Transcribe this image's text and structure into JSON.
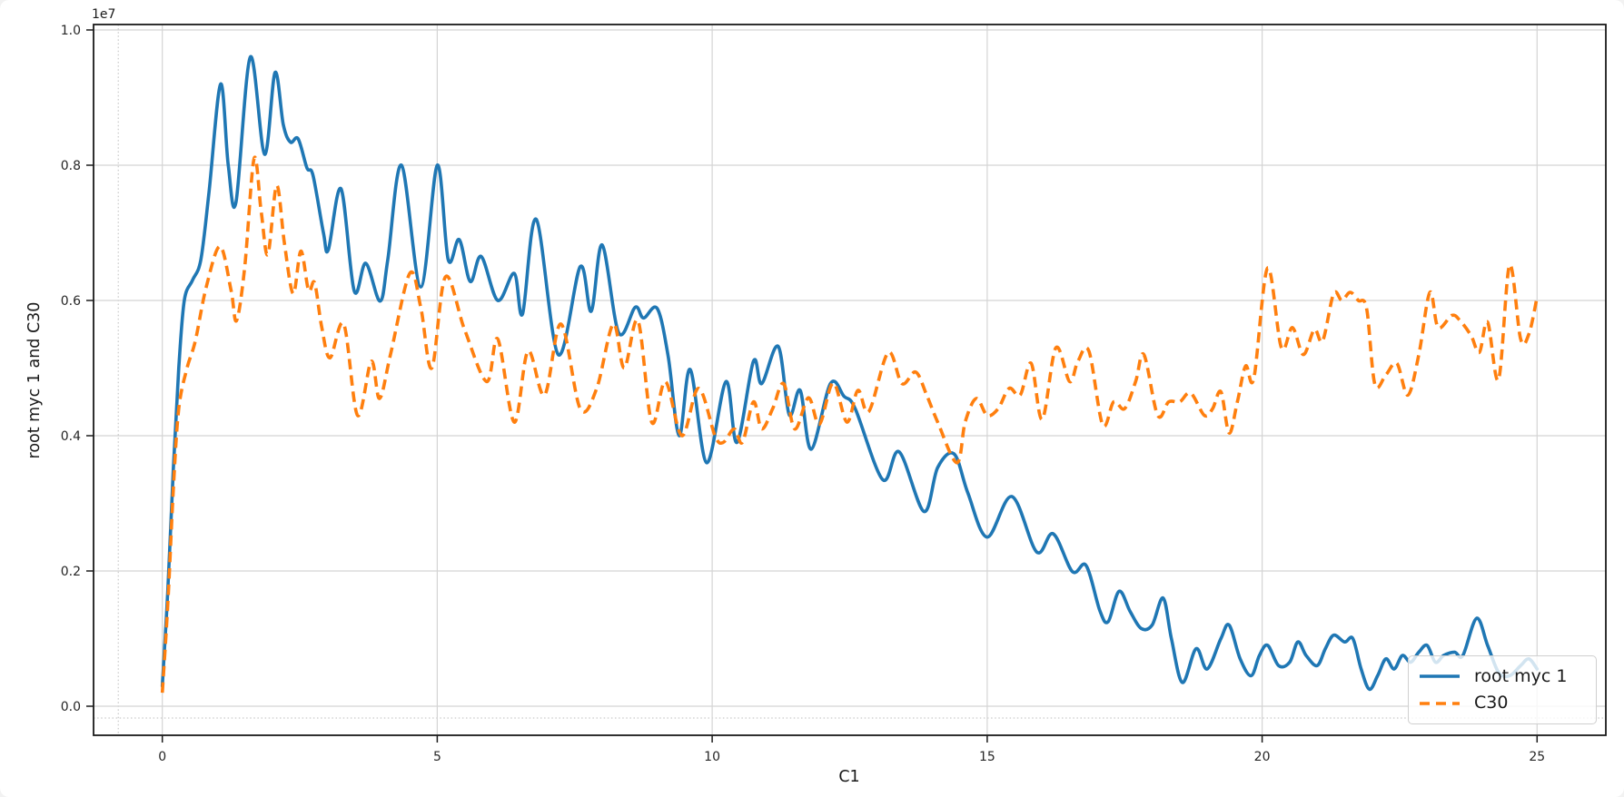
{
  "figure": {
    "background": "#ffffff"
  },
  "colors": {
    "grid_major": "#d4d4d4",
    "grid_minor": "#bdbdbd",
    "spine": "#1a1a1a",
    "tick_text": "#262626",
    "series_blue": "#1f77b4",
    "series_orange": "#ff7f0e"
  },
  "chart_data": {
    "type": "line",
    "title": "",
    "xlabel": "C1",
    "ylabel": "root myc 1 and C30",
    "y_offset_text": "1e7",
    "y_unit_multiplier": 10000000,
    "xlim": [
      -1.25,
      26.25
    ],
    "ylim": [
      -0.043,
      1.008
    ],
    "xticks": [
      0,
      5,
      10,
      15,
      20,
      25
    ],
    "xtick_labels": [
      "0",
      "5",
      "10",
      "15",
      "20",
      "25"
    ],
    "yticks": [
      0.0,
      0.2,
      0.4,
      0.6,
      0.8,
      1.0
    ],
    "ytick_labels": [
      "0.0",
      "0.2",
      "0.4",
      "0.6",
      "0.8",
      "1.0"
    ],
    "grid": true,
    "minor_gridlines": {
      "x": [
        -0.8
      ],
      "y": [
        -0.0175
      ]
    },
    "legend": {
      "position": "lower right",
      "entries": [
        "root myc 1",
        "C30"
      ]
    },
    "series": [
      {
        "name": "root myc 1",
        "color": "#1f77b4",
        "line_style": "solid",
        "x": [
          0,
          0.1,
          0.2,
          0.3,
          0.4,
          0.55,
          0.7,
          0.85,
          1.06,
          1.2,
          1.34,
          1.6,
          1.86,
          2.05,
          2.2,
          2.33,
          2.47,
          2.63,
          2.74,
          2.93,
          3.02,
          3.25,
          3.49,
          3.7,
          3.96,
          4.1,
          4.35,
          4.7,
          5.0,
          5.2,
          5.4,
          5.6,
          5.8,
          6.1,
          6.4,
          6.55,
          6.8,
          7.2,
          7.6,
          7.8,
          8.0,
          8.3,
          8.6,
          8.75,
          9.0,
          9.2,
          9.4,
          9.6,
          9.9,
          10.25,
          10.45,
          10.75,
          10.9,
          11.2,
          11.4,
          11.6,
          11.8,
          12.15,
          12.4,
          12.6,
          13.1,
          13.4,
          13.85,
          14.1,
          14.4,
          14.65,
          15.0,
          15.45,
          15.9,
          16.2,
          16.55,
          16.8,
          17.05,
          17.2,
          17.4,
          17.6,
          17.8,
          18.0,
          18.2,
          18.35,
          18.55,
          18.8,
          19.0,
          19.25,
          19.4,
          19.6,
          19.8,
          19.95,
          20.1,
          20.3,
          20.5,
          20.65,
          20.8,
          21.0,
          21.15,
          21.3,
          21.5,
          21.65,
          21.8,
          21.95,
          22.1,
          22.25,
          22.4,
          22.55,
          22.7,
          22.85,
          23.0,
          23.15,
          23.3,
          23.5,
          23.65,
          23.9,
          24.1,
          24.3,
          24.5,
          24.7,
          24.85,
          25.0
        ],
        "y": [
          0.03,
          0.17,
          0.35,
          0.5,
          0.6,
          0.63,
          0.66,
          0.76,
          0.92,
          0.8,
          0.745,
          0.96,
          0.816,
          0.937,
          0.86,
          0.834,
          0.839,
          0.796,
          0.785,
          0.7,
          0.675,
          0.765,
          0.614,
          0.655,
          0.599,
          0.66,
          0.8,
          0.62,
          0.8,
          0.66,
          0.69,
          0.628,
          0.665,
          0.6,
          0.64,
          0.58,
          0.72,
          0.52,
          0.65,
          0.584,
          0.682,
          0.552,
          0.59,
          0.574,
          0.588,
          0.517,
          0.4,
          0.498,
          0.36,
          0.48,
          0.39,
          0.51,
          0.477,
          0.532,
          0.431,
          0.467,
          0.38,
          0.477,
          0.458,
          0.44,
          0.335,
          0.376,
          0.288,
          0.353,
          0.373,
          0.315,
          0.25,
          0.31,
          0.228,
          0.255,
          0.199,
          0.208,
          0.141,
          0.125,
          0.17,
          0.14,
          0.115,
          0.12,
          0.16,
          0.1,
          0.035,
          0.085,
          0.055,
          0.1,
          0.12,
          0.07,
          0.045,
          0.075,
          0.09,
          0.06,
          0.065,
          0.095,
          0.075,
          0.06,
          0.085,
          0.105,
          0.095,
          0.1,
          0.055,
          0.025,
          0.045,
          0.07,
          0.055,
          0.075,
          0.065,
          0.08,
          0.09,
          0.065,
          0.075,
          0.08,
          0.075,
          0.13,
          0.09,
          0.05,
          0.045,
          0.06,
          0.07,
          0.055
        ]
      },
      {
        "name": "C30",
        "color": "#ff7f0e",
        "line_style": "dashed",
        "x": [
          0,
          0.1,
          0.2,
          0.3,
          0.45,
          0.6,
          0.8,
          1.05,
          1.25,
          1.35,
          1.5,
          1.67,
          1.8,
          1.92,
          2.08,
          2.22,
          2.38,
          2.52,
          2.66,
          2.77,
          2.9,
          3.05,
          3.3,
          3.55,
          3.8,
          3.95,
          4.15,
          4.5,
          4.7,
          4.9,
          5.15,
          5.5,
          5.9,
          6.1,
          6.4,
          6.65,
          6.95,
          7.25,
          7.6,
          7.9,
          8.2,
          8.4,
          8.65,
          8.9,
          9.15,
          9.45,
          9.75,
          10.05,
          10.2,
          10.4,
          10.55,
          10.75,
          10.9,
          11.1,
          11.3,
          11.5,
          11.75,
          11.95,
          12.2,
          12.45,
          12.65,
          12.85,
          13.2,
          13.45,
          13.7,
          13.9,
          14.1,
          14.45,
          14.6,
          14.8,
          15.0,
          15.2,
          15.4,
          15.6,
          15.8,
          16.0,
          16.25,
          16.5,
          16.65,
          16.85,
          17.1,
          17.3,
          17.5,
          17.7,
          17.85,
          18.1,
          18.3,
          18.5,
          18.7,
          18.95,
          19.1,
          19.25,
          19.4,
          19.55,
          19.7,
          19.85,
          20.1,
          20.35,
          20.55,
          20.75,
          20.95,
          21.1,
          21.3,
          21.45,
          21.6,
          21.75,
          21.9,
          22.05,
          22.25,
          22.45,
          22.65,
          22.85,
          23.05,
          23.2,
          23.45,
          23.6,
          23.8,
          23.95,
          24.1,
          24.3,
          24.5,
          24.7,
          24.85,
          25.0
        ],
        "y": [
          0.02,
          0.15,
          0.32,
          0.44,
          0.5,
          0.54,
          0.62,
          0.68,
          0.615,
          0.57,
          0.65,
          0.81,
          0.73,
          0.668,
          0.77,
          0.685,
          0.61,
          0.673,
          0.615,
          0.626,
          0.56,
          0.515,
          0.565,
          0.43,
          0.51,
          0.455,
          0.52,
          0.64,
          0.59,
          0.5,
          0.635,
          0.556,
          0.48,
          0.543,
          0.42,
          0.525,
          0.46,
          0.565,
          0.44,
          0.47,
          0.565,
          0.5,
          0.57,
          0.42,
          0.48,
          0.4,
          0.47,
          0.4,
          0.39,
          0.41,
          0.39,
          0.45,
          0.41,
          0.44,
          0.477,
          0.41,
          0.456,
          0.417,
          0.478,
          0.42,
          0.467,
          0.436,
          0.523,
          0.477,
          0.494,
          0.46,
          0.42,
          0.36,
          0.42,
          0.455,
          0.43,
          0.44,
          0.47,
          0.46,
          0.507,
          0.424,
          0.53,
          0.48,
          0.51,
          0.525,
          0.416,
          0.45,
          0.44,
          0.48,
          0.52,
          0.43,
          0.45,
          0.45,
          0.463,
          0.43,
          0.44,
          0.465,
          0.404,
          0.45,
          0.503,
          0.485,
          0.648,
          0.53,
          0.56,
          0.52,
          0.557,
          0.54,
          0.61,
          0.6,
          0.612,
          0.6,
          0.588,
          0.476,
          0.49,
          0.507,
          0.46,
          0.52,
          0.612,
          0.56,
          0.578,
          0.57,
          0.548,
          0.523,
          0.568,
          0.483,
          0.652,
          0.543,
          0.55,
          0.605
        ]
      }
    ]
  }
}
